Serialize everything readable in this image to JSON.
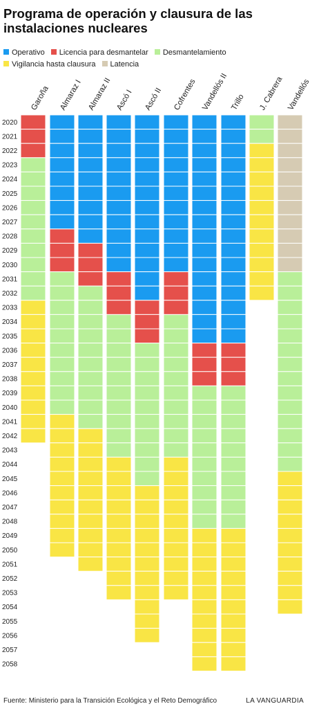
{
  "title": "Programa de operación y clausura de las instalaciones nucleares",
  "legend": [
    {
      "label": "Operativo",
      "color": "#1a9bf0"
    },
    {
      "label": "Licencia para desmantelar",
      "color": "#e5504b"
    },
    {
      "label": "Desmantelamiento",
      "color": "#b9ef99"
    },
    {
      "label": "Vigilancia hasta clausura",
      "color": "#f9e545"
    },
    {
      "label": "Latencia",
      "color": "#d6cbb3"
    }
  ],
  "footer": {
    "source": "Fuente: Ministerio para la Transición Ecológica y el Reto Demográfico",
    "brand": "LA VANGUARDIA"
  },
  "chart_data": {
    "type": "heatmap",
    "title": "Programa de operación y clausura de las instalaciones nucleares",
    "years": [
      2020,
      2021,
      2022,
      2023,
      2024,
      2025,
      2026,
      2027,
      2028,
      2029,
      2030,
      2031,
      2032,
      2033,
      2034,
      2035,
      2036,
      2037,
      2038,
      2039,
      2040,
      2041,
      2042,
      2043,
      2044,
      2045,
      2046,
      2047,
      2048,
      2049,
      2050,
      2051,
      2052,
      2053,
      2054,
      2055,
      2056,
      2057,
      2058
    ],
    "plants": [
      {
        "name": "Garoña",
        "phases": [
          {
            "phase": "Licencia para desmantelar",
            "from": 2020,
            "to": 2022
          },
          {
            "phase": "Desmantelamiento",
            "from": 2023,
            "to": 2032
          },
          {
            "phase": "Vigilancia hasta clausura",
            "from": 2033,
            "to": 2042
          }
        ]
      },
      {
        "name": "Almaraz I",
        "phases": [
          {
            "phase": "Operativo",
            "from": 2020,
            "to": 2027
          },
          {
            "phase": "Licencia para desmantelar",
            "from": 2028,
            "to": 2030
          },
          {
            "phase": "Desmantelamiento",
            "from": 2031,
            "to": 2040
          },
          {
            "phase": "Vigilancia hasta clausura",
            "from": 2041,
            "to": 2050
          }
        ]
      },
      {
        "name": "Almaraz II",
        "phases": [
          {
            "phase": "Operativo",
            "from": 2020,
            "to": 2028
          },
          {
            "phase": "Licencia para desmantelar",
            "from": 2029,
            "to": 2031
          },
          {
            "phase": "Desmantelamiento",
            "from": 2032,
            "to": 2041
          },
          {
            "phase": "Vigilancia hasta clausura",
            "from": 2042,
            "to": 2051
          }
        ]
      },
      {
        "name": "Ascó I",
        "phases": [
          {
            "phase": "Operativo",
            "from": 2020,
            "to": 2030
          },
          {
            "phase": "Licencia para desmantelar",
            "from": 2031,
            "to": 2033
          },
          {
            "phase": "Desmantelamiento",
            "from": 2034,
            "to": 2043
          },
          {
            "phase": "Vigilancia hasta clausura",
            "from": 2044,
            "to": 2053
          }
        ]
      },
      {
        "name": "Ascó II",
        "phases": [
          {
            "phase": "Operativo",
            "from": 2020,
            "to": 2032
          },
          {
            "phase": "Licencia para desmantelar",
            "from": 2033,
            "to": 2035
          },
          {
            "phase": "Desmantelamiento",
            "from": 2036,
            "to": 2045
          },
          {
            "phase": "Vigilancia hasta clausura",
            "from": 2046,
            "to": 2056
          }
        ]
      },
      {
        "name": "Cofrentes",
        "phases": [
          {
            "phase": "Operativo",
            "from": 2020,
            "to": 2030
          },
          {
            "phase": "Licencia para desmantelar",
            "from": 2031,
            "to": 2033
          },
          {
            "phase": "Desmantelamiento",
            "from": 2034,
            "to": 2043
          },
          {
            "phase": "Vigilancia hasta clausura",
            "from": 2044,
            "to": 2053
          }
        ]
      },
      {
        "name": "Vandellós II",
        "phases": [
          {
            "phase": "Operativo",
            "from": 2020,
            "to": 2035
          },
          {
            "phase": "Licencia para desmantelar",
            "from": 2036,
            "to": 2038
          },
          {
            "phase": "Desmantelamiento",
            "from": 2039,
            "to": 2048
          },
          {
            "phase": "Vigilancia hasta clausura",
            "from": 2049,
            "to": 2058
          }
        ]
      },
      {
        "name": "Trillo",
        "phases": [
          {
            "phase": "Operativo",
            "from": 2020,
            "to": 2035
          },
          {
            "phase": "Licencia para desmantelar",
            "from": 2036,
            "to": 2038
          },
          {
            "phase": "Desmantelamiento",
            "from": 2039,
            "to": 2048
          },
          {
            "phase": "Vigilancia hasta clausura",
            "from": 2049,
            "to": 2058
          }
        ]
      },
      {
        "name": "J. Cabrera",
        "phases": [
          {
            "phase": "Desmantelamiento",
            "from": 2020,
            "to": 2021
          },
          {
            "phase": "Vigilancia hasta clausura",
            "from": 2022,
            "to": 2032
          }
        ]
      },
      {
        "name": "Vandellós",
        "phases": [
          {
            "phase": "Latencia",
            "from": 2020,
            "to": 2030
          },
          {
            "phase": "Desmantelamiento",
            "from": 2031,
            "to": 2044
          },
          {
            "phase": "Vigilancia hasta clausura",
            "from": 2045,
            "to": 2054
          }
        ]
      }
    ]
  }
}
